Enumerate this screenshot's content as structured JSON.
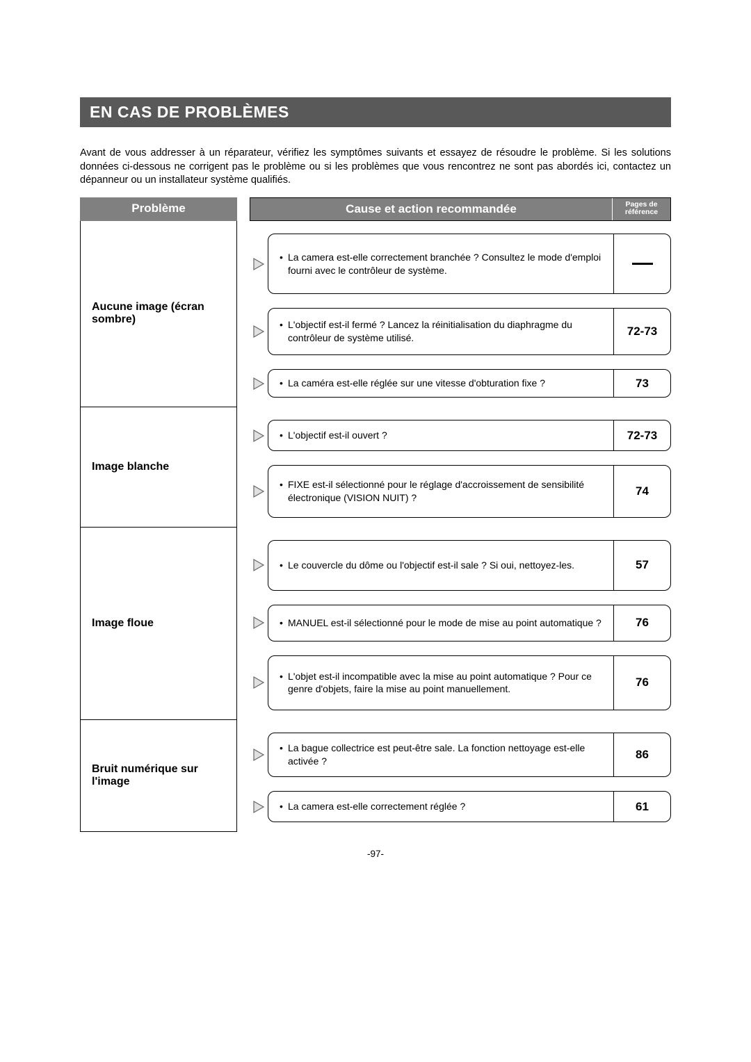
{
  "title": "EN CAS DE PROBLÈMES",
  "intro": "Avant de vous addresser à un réparateur, vérifiez les symptômes suivants et essayez de résoudre le problème. Si les solutions données ci-dessous ne corrigent pas le problème ou si les problèmes que vous rencontrez ne sont pas abordés ici, contactez un dépanneur ou un installateur système qualifiés.",
  "headers": {
    "problem": "Problème",
    "cause": "Cause et action recommandée",
    "pages_line1": "Pages de",
    "pages_line2": "référence"
  },
  "colors": {
    "header_bg": "#808080",
    "title_bg": "#595959",
    "text": "#000000",
    "header_text": "#ffffff",
    "arrow_stroke": "#666666",
    "arrow_fill": "#e0e0e0"
  },
  "rows": [
    {
      "problem": "Aucune image (écran sombre)",
      "causes": [
        {
          "text": "La camera est-elle correctement branchée ? Consultez le mode d'emploi fourni avec le contrôleur de système.",
          "pages": "—",
          "is_dash": true,
          "pad": "24px 14px 24px 16px"
        },
        {
          "text": "L'objectif est-il fermé ? Lancez la réinitialisation du diaphragme du contrôleur de système utilisé.",
          "pages": "72-73",
          "pad": "14px 14px 14px 16px"
        },
        {
          "text": "La caméra est-elle réglée sur une vitesse d'obturation fixe ?",
          "pages": "73",
          "pad": "10px 14px 10px 16px"
        }
      ]
    },
    {
      "problem": "Image blanche",
      "causes": [
        {
          "text": "L'objectif est-il ouvert ?",
          "pages": "72-73",
          "pad": "12px 14px 12px 16px"
        },
        {
          "text": "FIXE est-il sélectionné pour le réglage d'accroissement de sensibilité électronique (VISION NUIT) ?",
          "pages": "74",
          "pad": "18px 14px 18px 16px"
        }
      ]
    },
    {
      "problem": "Image floue",
      "causes": [
        {
          "text": "Le couvercle du dôme ou l'objectif est-il sale ? Si oui, nettoyez-les.",
          "pages": "57",
          "pad": "26px 14px 26px 16px"
        },
        {
          "text": "MANUEL est-il sélectionné pour le mode de mise au point automatique ?",
          "pages": "76",
          "pad": "16px 14px 16px 16px"
        },
        {
          "text": "L'objet est-il incompatible avec la mise au point automatique ? Pour ce genre d'objets, faire la mise au point manuellement.",
          "pages": "76",
          "pad": "20px 14px 20px 16px"
        }
      ]
    },
    {
      "problem": "Bruit numérique sur l'image",
      "causes": [
        {
          "text": "La bague collectrice est peut-être sale. La fonction nettoyage est-elle activée ?",
          "pages": "86",
          "pad": "12px 14px 12px 16px"
        },
        {
          "text": "La camera est-elle correctement réglée ?",
          "pages": "61",
          "pad": "12px 14px 12px 16px"
        }
      ]
    }
  ],
  "footer": "-97-"
}
